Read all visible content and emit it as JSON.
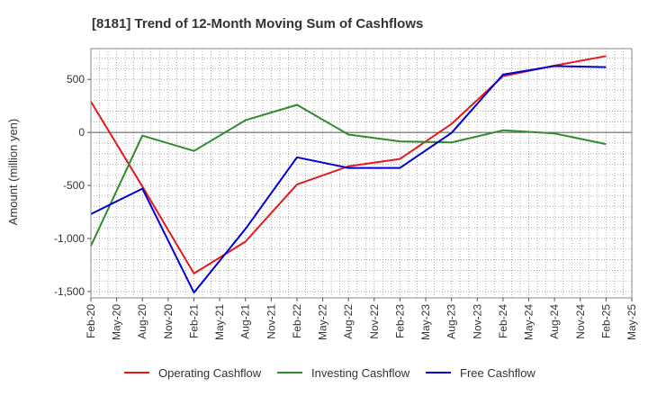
{
  "chart_data": {
    "type": "line",
    "title": "[8181]  Trend of 12-Month Moving Sum of Cashflows",
    "ylabel": "Amount (million yen)",
    "xlabel": "",
    "x_ticks": [
      "Feb-20",
      "May-20",
      "Aug-20",
      "Nov-20",
      "Feb-21",
      "May-21",
      "Aug-21",
      "Nov-21",
      "Feb-22",
      "May-22",
      "Aug-22",
      "Nov-22",
      "Feb-23",
      "May-23",
      "Aug-23",
      "Nov-23",
      "Feb-24",
      "May-24",
      "Aug-24",
      "Nov-24",
      "Feb-25",
      "May-25"
    ],
    "y_ticks": [
      500,
      0,
      -500,
      -1000,
      -1500
    ],
    "y_tick_labels": [
      "500",
      "0",
      "-500",
      "-1,000",
      "-1,500"
    ],
    "ylim": [
      -1560,
      790
    ],
    "grid": true,
    "legend_position": "bottom",
    "series": [
      {
        "name": "Operating Cashflow",
        "color": "#e31a1c",
        "x": [
          "Feb-20",
          "Aug-20",
          "Feb-21",
          "Aug-21",
          "Feb-22",
          "Aug-22",
          "Feb-23",
          "Aug-23",
          "Feb-24",
          "Aug-24",
          "Feb-25"
        ],
        "values": [
          290,
          -510,
          -1330,
          -1030,
          -490,
          -320,
          -250,
          80,
          530,
          630,
          720
        ]
      },
      {
        "name": "Investing Cashflow",
        "color": "#2e8b2e",
        "x": [
          "Feb-20",
          "Aug-20",
          "Feb-21",
          "Aug-21",
          "Feb-22",
          "Aug-22",
          "Feb-23",
          "Aug-23",
          "Feb-24",
          "Aug-24",
          "Feb-25"
        ],
        "values": [
          -1070,
          -30,
          -175,
          115,
          260,
          -20,
          -85,
          -95,
          20,
          -10,
          -110
        ]
      },
      {
        "name": "Free Cashflow",
        "color": "#0000cc",
        "x": [
          "Feb-20",
          "Aug-20",
          "Feb-21",
          "Aug-21",
          "Feb-22",
          "Aug-22",
          "Feb-23",
          "Aug-23",
          "Feb-24",
          "Aug-24",
          "Feb-25"
        ],
        "values": [
          -770,
          -530,
          -1510,
          -910,
          -235,
          -335,
          -335,
          -5,
          545,
          625,
          615
        ]
      }
    ]
  }
}
